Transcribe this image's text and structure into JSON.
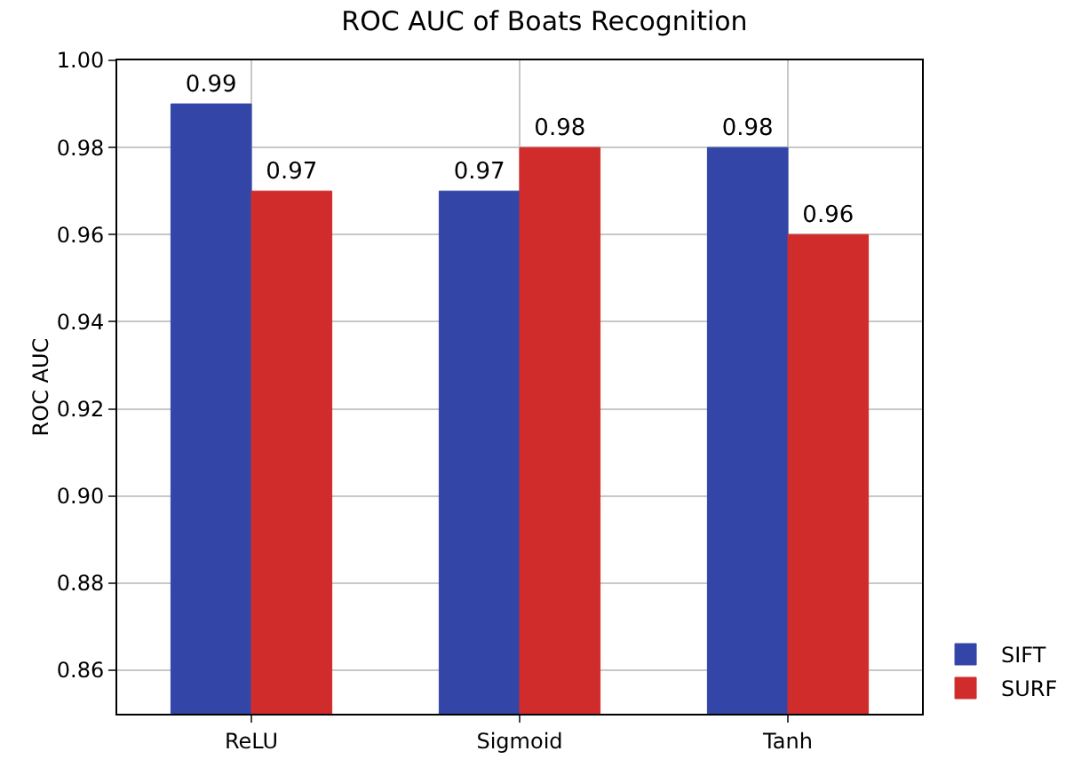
{
  "chart_data": {
    "type": "bar",
    "title": "ROC AUC of Boats Recognition",
    "ylabel": "ROC AUC",
    "categories": [
      "ReLU",
      "Sigmoid",
      "Tanh"
    ],
    "series": [
      {
        "name": "SIFT",
        "color": "#3346a8",
        "values": [
          0.99,
          0.97,
          0.98
        ]
      },
      {
        "name": "SURF",
        "color": "#d12c2c",
        "values": [
          0.97,
          0.98,
          0.96
        ]
      }
    ],
    "ylim": [
      0.85,
      1.0
    ],
    "yticks": [
      {
        "value": 0.86,
        "label": "0.86"
      },
      {
        "value": 0.88,
        "label": "0.88"
      },
      {
        "value": 0.9,
        "label": "0.90"
      },
      {
        "value": 0.92,
        "label": "0.92"
      },
      {
        "value": 0.94,
        "label": "0.94"
      },
      {
        "value": 0.96,
        "label": "0.96"
      },
      {
        "value": 0.98,
        "label": "0.98"
      },
      {
        "value": 1.0,
        "label": "1.00"
      }
    ],
    "grid": true,
    "legend": "bottom right",
    "data_labels": true
  }
}
